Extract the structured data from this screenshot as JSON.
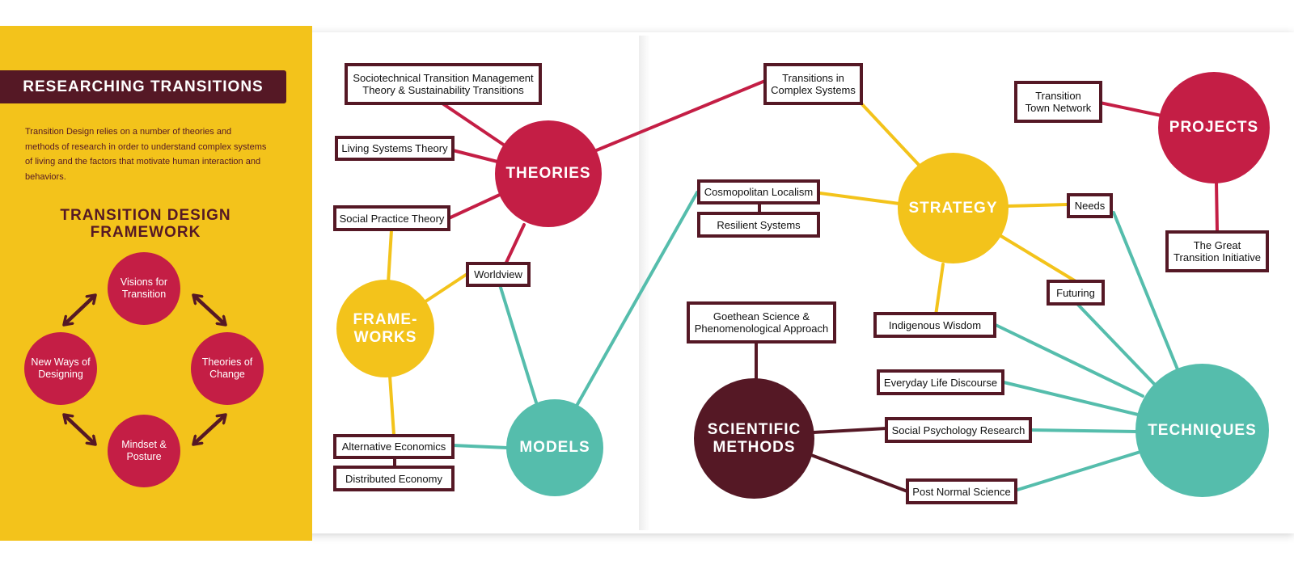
{
  "sidebar": {
    "banner_title": "RESEARCHING TRANSITIONS",
    "intro_text": "Transition Design relies on a number of theories and methods of research in order to understand complex systems of living and the factors that motivate human interaction and behaviors.",
    "framework_title": [
      "TRANSITION DESIGN",
      "FRAMEWORK"
    ],
    "framework_items": [
      "Visions for Transition",
      "Theories of Change",
      "Mindset & Posture",
      "New Ways of Designing"
    ]
  },
  "hubs": {
    "theories": [
      "THEORIES"
    ],
    "frameworks": [
      "FRAME-",
      "WORKS"
    ],
    "models": [
      "MODELS"
    ],
    "strategy": [
      "STRATEGY"
    ],
    "projects": [
      "PROJECTS"
    ],
    "scientific_methods": [
      "SCIENTIFIC",
      "METHODS"
    ],
    "techniques": [
      "TECHNIQUES"
    ]
  },
  "nodes": {
    "sociotechnical": [
      "Sociotechnical Transition Management",
      "Theory & Sustainability Transitions"
    ],
    "living_systems": [
      "Living Systems Theory"
    ],
    "social_practice": [
      "Social Practice Theory"
    ],
    "worldview": [
      "Worldview"
    ],
    "alternative_economics": [
      "Alternative Economics"
    ],
    "distributed_economy": [
      "Distributed Economy"
    ],
    "transitions_complex": [
      "Transitions in",
      "Complex Systems"
    ],
    "cosmopolitan_localism": [
      "Cosmopolitan Localism"
    ],
    "resilient_systems": [
      "Resilient Systems"
    ],
    "transition_town": [
      "Transition",
      "Town Network"
    ],
    "needs": [
      "Needs"
    ],
    "great_transition": [
      "The Great",
      "Transition Initiative"
    ],
    "futuring": [
      "Futuring"
    ],
    "indigenous_wisdom": [
      "Indigenous Wisdom"
    ],
    "goethean": [
      "Goethean Science &",
      "Phenomenological Approach"
    ],
    "everyday_life": [
      "Everyday Life Discourse"
    ],
    "social_psychology": [
      "Social Psychology Research"
    ],
    "post_normal": [
      "Post Normal Science"
    ]
  },
  "colors": {
    "background": "#ffffff",
    "panel_yellow": "#f3c31b",
    "maroon": "#551825",
    "red": "#c41e45",
    "yellow": "#f3c31b",
    "teal": "#55bdac"
  },
  "icons": {
    "framework_arrows": "double-headed-arrow-icon"
  }
}
